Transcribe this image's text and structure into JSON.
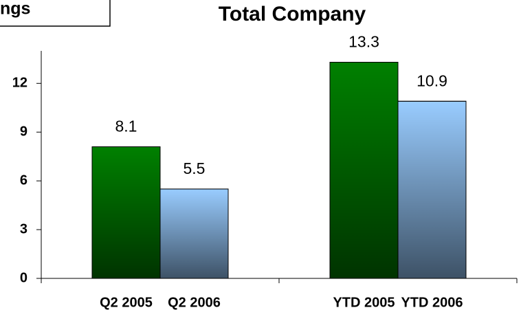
{
  "header": {
    "label": "ngs"
  },
  "chart_data": {
    "type": "bar",
    "title": "Total Company",
    "categories": [
      "Q2 2005",
      "Q2 2006",
      "YTD 2005",
      "YTD 2006"
    ],
    "values": [
      8.1,
      5.5,
      13.3,
      10.9
    ],
    "colors": [
      "#008000",
      "#99ccff",
      "#008000",
      "#99ccff"
    ],
    "ylim": [
      0,
      14
    ],
    "yticks": [
      0,
      3,
      6,
      9,
      12
    ]
  }
}
